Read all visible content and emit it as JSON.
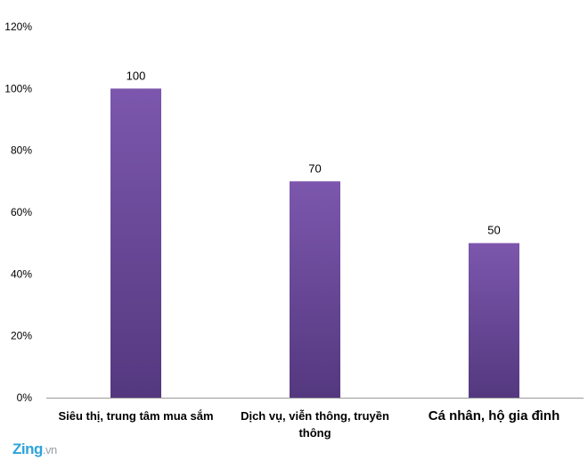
{
  "chart_data": {
    "type": "bar",
    "categories": [
      "Siêu thị, trung tâm mua sắm",
      "Dịch vụ, viễn thông, truyền thông",
      "Cá nhân, hộ gia đình"
    ],
    "values": [
      100,
      70,
      50
    ],
    "data_labels": [
      "100",
      "70",
      "50"
    ],
    "title": "",
    "xlabel": "",
    "ylabel": "",
    "ylim": [
      0,
      120
    ],
    "yticks": [
      "0%",
      "20%",
      "40%",
      "60%",
      "80%",
      "100%",
      "120%"
    ],
    "grid": false,
    "legend": "none",
    "bar_color_top": "#7c57ad",
    "bar_color_bottom": "#54387f"
  },
  "watermark": {
    "brand": "Zing",
    "suffix": ".vn"
  }
}
